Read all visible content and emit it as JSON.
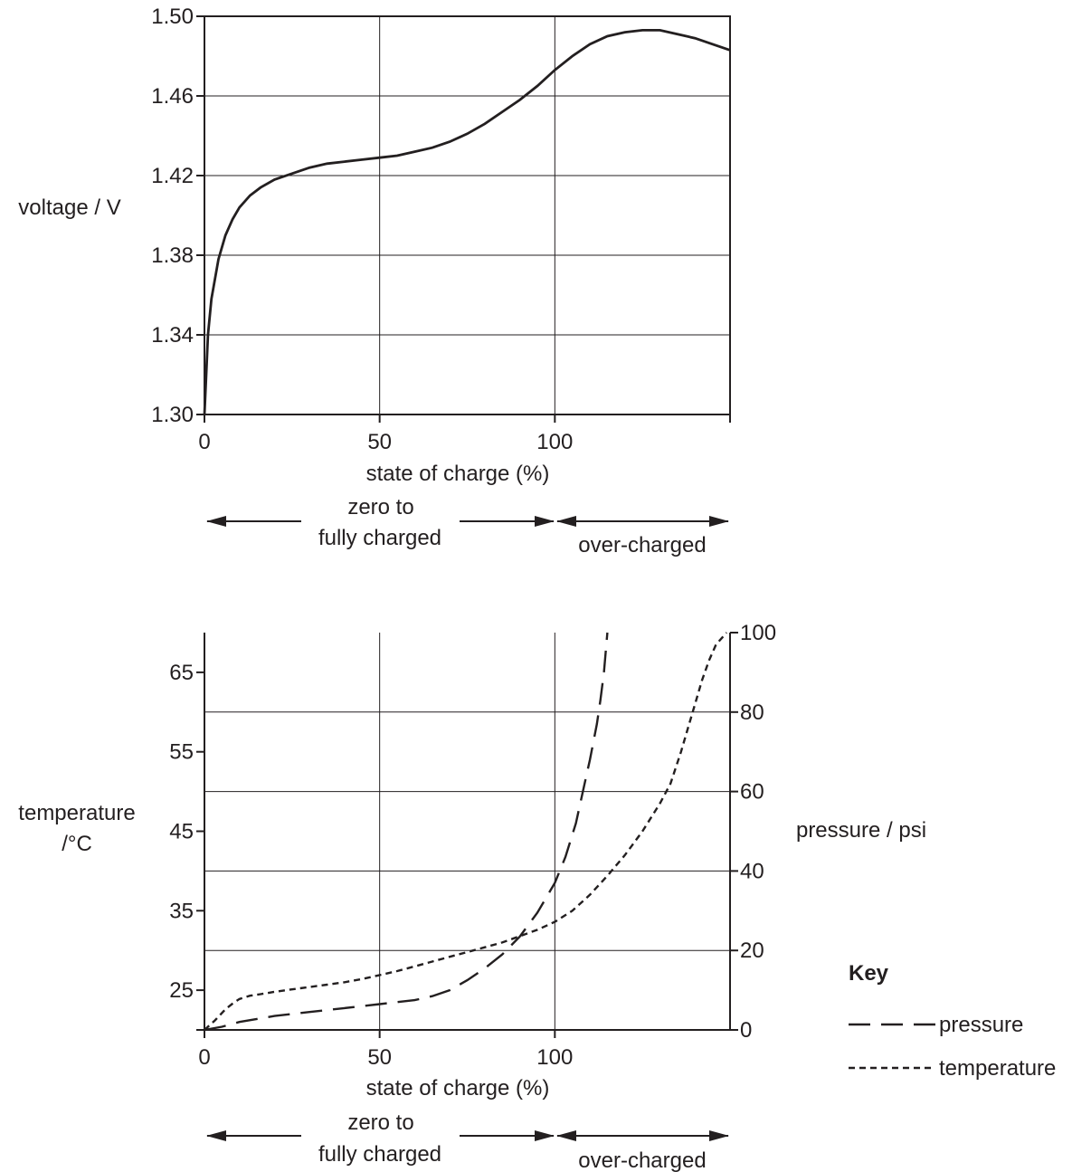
{
  "chart_data": [
    {
      "type": "line",
      "title": "",
      "xlabel": "state of charge (%)",
      "ylabel": "voltage / V",
      "xlim": [
        0,
        150
      ],
      "ylim": [
        1.3,
        1.5
      ],
      "x_ticks": [
        "0",
        "50",
        "100"
      ],
      "x_tick_values": [
        0,
        50,
        100
      ],
      "y_ticks": [
        "1.30",
        "1.34",
        "1.38",
        "1.42",
        "1.46",
        "1.50"
      ],
      "y_tick_values": [
        1.3,
        1.34,
        1.38,
        1.42,
        1.46,
        1.5
      ],
      "grid": true,
      "regions": [
        {
          "label_line1": "zero to",
          "label_line2": "fully charged",
          "from": 0,
          "to": 100
        },
        {
          "label_line1": "",
          "label_line2": "over-charged",
          "from": 100,
          "to": 150
        }
      ],
      "series": [
        {
          "style": "solid",
          "x": [
            0,
            1,
            2,
            4,
            6,
            8,
            10,
            13,
            16,
            20,
            25,
            30,
            35,
            40,
            45,
            50,
            55,
            60,
            65,
            70,
            75,
            80,
            85,
            90,
            95,
            100,
            105,
            110,
            115,
            120,
            125,
            130,
            135,
            140,
            145,
            150
          ],
          "y": [
            1.3,
            1.34,
            1.358,
            1.378,
            1.39,
            1.398,
            1.404,
            1.41,
            1.414,
            1.418,
            1.421,
            1.424,
            1.426,
            1.427,
            1.428,
            1.429,
            1.43,
            1.432,
            1.434,
            1.437,
            1.441,
            1.446,
            1.452,
            1.458,
            1.465,
            1.473,
            1.48,
            1.486,
            1.49,
            1.492,
            1.493,
            1.493,
            1.491,
            1.489,
            1.486,
            1.483
          ]
        }
      ]
    },
    {
      "type": "line",
      "title": "",
      "xlabel": "state of charge (%)",
      "ylabel_line1": "temperature",
      "ylabel_line2": "/°C",
      "ylabel_right": "pressure / psi",
      "xlim": [
        0,
        150
      ],
      "ylim": [
        20,
        70
      ],
      "ylim_right": [
        0,
        100
      ],
      "x_ticks": [
        "0",
        "50",
        "100"
      ],
      "x_tick_values": [
        0,
        50,
        100
      ],
      "y_ticks": [
        "25",
        "35",
        "45",
        "55",
        "65"
      ],
      "y_tick_values": [
        25,
        35,
        45,
        55,
        65
      ],
      "y_ticks_right": [
        "0",
        "20",
        "40",
        "60",
        "80",
        "100"
      ],
      "y_tick_values_right": [
        0,
        20,
        40,
        60,
        80,
        100
      ],
      "grid": true,
      "legend": {
        "title": "Key",
        "placement": "bottom-right",
        "entries": [
          {
            "label": "pressure",
            "style": "long-dash"
          },
          {
            "label": "temperature",
            "style": "short-dash"
          }
        ]
      },
      "regions": [
        {
          "label_line1": "zero to",
          "label_line2": "fully charged",
          "from": 0,
          "to": 100
        },
        {
          "label_line1": "",
          "label_line2": "over-charged",
          "from": 100,
          "to": 150
        }
      ],
      "series": [
        {
          "name": "pressure",
          "axis": "right",
          "style": "long-dash",
          "x": [
            0,
            5,
            10,
            20,
            30,
            40,
            50,
            60,
            65,
            70,
            75,
            80,
            85,
            90,
            95,
            100,
            103,
            106,
            108,
            110,
            112,
            113,
            114,
            115
          ],
          "y": [
            0,
            0.8,
            2,
            3.5,
            4.5,
            5.5,
            6.5,
            7.5,
            8.5,
            10,
            12.5,
            15.5,
            19,
            23.5,
            29.5,
            37,
            43.5,
            52,
            60,
            68,
            77,
            83,
            90,
            100
          ]
        },
        {
          "name": "temperature",
          "axis": "left",
          "style": "short-dash",
          "x": [
            0,
            3,
            6,
            8,
            10,
            13,
            16,
            20,
            25,
            30,
            35,
            40,
            45,
            50,
            55,
            60,
            65,
            70,
            75,
            80,
            85,
            90,
            95,
            100,
            105,
            110,
            115,
            120,
            125,
            130,
            133,
            136,
            138,
            140,
            142,
            144,
            146,
            148,
            149
          ],
          "y": [
            20,
            21.2,
            22.6,
            23.3,
            23.9,
            24.3,
            24.5,
            24.8,
            25.1,
            25.4,
            25.7,
            26.0,
            26.4,
            26.9,
            27.4,
            28.0,
            28.6,
            29.2,
            29.8,
            30.4,
            31.0,
            31.8,
            32.6,
            33.6,
            35.0,
            37.0,
            39.4,
            42.0,
            45.0,
            48.5,
            51.0,
            55.0,
            58.0,
            61.0,
            64.0,
            66.5,
            68.5,
            69.5,
            70.0
          ]
        }
      ]
    }
  ]
}
